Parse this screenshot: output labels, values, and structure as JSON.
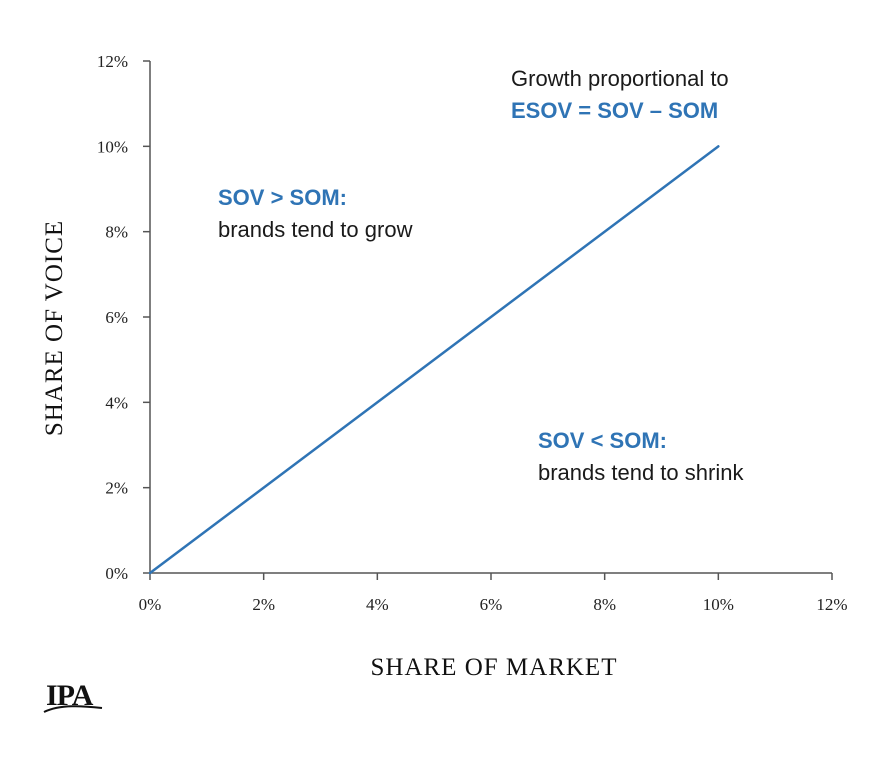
{
  "chart_data": {
    "type": "line",
    "xlabel": "SHARE OF MARKET",
    "ylabel": "SHARE OF VOICE",
    "xlim": [
      0,
      12
    ],
    "ylim": [
      0,
      12
    ],
    "x_ticks": [
      "0%",
      "2%",
      "4%",
      "6%",
      "8%",
      "10%",
      "12%"
    ],
    "y_ticks": [
      "0%",
      "2%",
      "4%",
      "6%",
      "8%",
      "10%",
      "12%"
    ],
    "grid": false,
    "series": [
      {
        "x": [
          0,
          10
        ],
        "y": [
          0,
          10
        ],
        "color": "#2f74b5"
      }
    ],
    "annotations": {
      "growth_line1": "Growth proportional to",
      "growth_line2": "ESOV = SOV – SOM",
      "upper_title": "SOV > SOM:",
      "upper_text": "brands tend to grow",
      "lower_title": "SOV < SOM:",
      "lower_text": "brands tend to shrink"
    }
  },
  "logo": {
    "text": "IPA"
  },
  "colors": {
    "accent": "#2f74b5",
    "axis": "#555555",
    "text": "#111111"
  }
}
